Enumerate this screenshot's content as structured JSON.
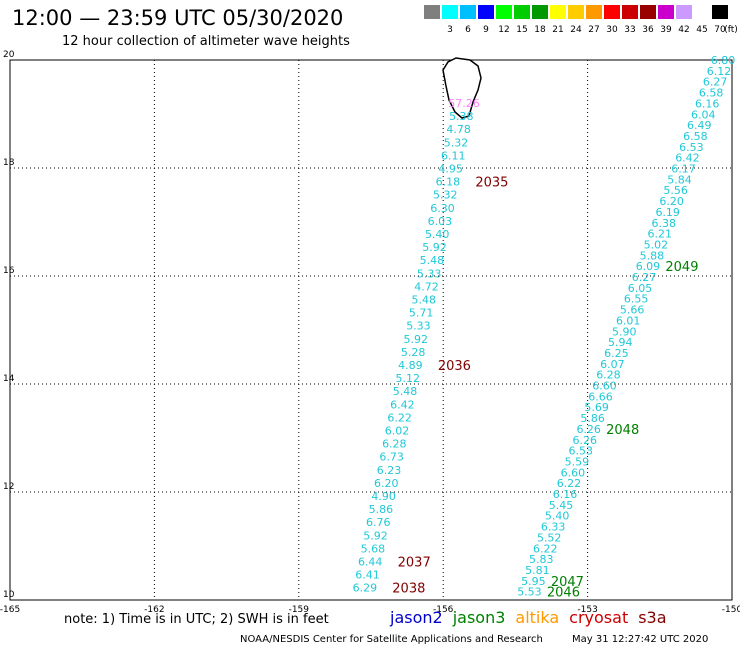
{
  "title": "12:00 — 23:59 UTC 05/30/2020",
  "subtitle": "12 hour collection of altimeter wave heights",
  "legend": {
    "unit": "(ft)",
    "bins": [
      {
        "label": "",
        "color": "#7f7f7f"
      },
      {
        "label": "3",
        "color": "#00ffff"
      },
      {
        "label": "6",
        "color": "#00bfff"
      },
      {
        "label": "9",
        "color": "#0000ff"
      },
      {
        "label": "12",
        "color": "#00ff00"
      },
      {
        "label": "15",
        "color": "#00cc00"
      },
      {
        "label": "18",
        "color": "#009900"
      },
      {
        "label": "21",
        "color": "#ffff00"
      },
      {
        "label": "24",
        "color": "#ffcc00"
      },
      {
        "label": "27",
        "color": "#ff9900"
      },
      {
        "label": "30",
        "color": "#ff0000"
      },
      {
        "label": "33",
        "color": "#cc0000"
      },
      {
        "label": "36",
        "color": "#990000"
      },
      {
        "label": "39",
        "color": "#cc00cc"
      },
      {
        "label": "42",
        "color": "#cc99ff"
      },
      {
        "label": "45",
        "color": "#ffffff"
      },
      {
        "label": "70",
        "color": "#000000"
      }
    ]
  },
  "axes": {
    "lon_ticks": [
      "-165",
      "-162",
      "-159",
      "-156",
      "-153",
      "-150"
    ],
    "lat_ticks": [
      "10",
      "12",
      "14",
      "16",
      "18",
      "20"
    ]
  },
  "colors": {
    "swh": "#20c8d8",
    "time_jason3": "#008000",
    "time_cryosat": "#800000",
    "highlight": "#ff80ff"
  },
  "tracks": [
    {
      "id": "track-1",
      "readings": [
        "57.26",
        "5.38",
        "4.78",
        "5.32",
        "6.11",
        "4.95",
        "6.18",
        "5.32",
        "6.30",
        "6.03",
        "5.40",
        "5.92",
        "5.48",
        "5.33",
        "4.72",
        "5.48",
        "5.71",
        "5.33",
        "5.92",
        "5.28",
        "4.89",
        "5.12",
        "5.48",
        "6.42",
        "6.22",
        "6.02",
        "6.28",
        "6.73",
        "6.23",
        "6.20",
        "4.90",
        "5.86",
        "6.76",
        "5.92",
        "5.68",
        "6.44",
        "6.41",
        "6.29"
      ],
      "times": [
        {
          "label": "2035",
          "row": 6
        },
        {
          "label": "2036",
          "row": 20
        },
        {
          "label": "2037",
          "row": 35
        },
        {
          "label": "2038",
          "row": 37
        }
      ]
    },
    {
      "id": "track-2",
      "readings": [
        "6.80",
        "6.12",
        "6.27",
        "6.58",
        "6.16",
        "6.04",
        "6.49",
        "6.58",
        "6.53",
        "6.42",
        "6.17",
        "5.84",
        "5.56",
        "6.20",
        "6.19",
        "6.38",
        "6.21",
        "5.02",
        "5.88",
        "6.09",
        "6.27",
        "6.05",
        "6.55",
        "5.66",
        "6.01",
        "5.90",
        "5.94",
        "6.25",
        "6.07",
        "6.28",
        "6.60",
        "6.66",
        "5.69",
        "5.86",
        "6.26",
        "6.26",
        "6.53",
        "5.59",
        "6.60",
        "6.22",
        "6.16",
        "5.45",
        "5.40",
        "6.33",
        "5.52",
        "6.22",
        "5.83",
        "5.81",
        "5.95",
        "5.53"
      ],
      "times": [
        {
          "label": "2049",
          "row": 19
        },
        {
          "label": "2048",
          "row": 34
        },
        {
          "label": "2047",
          "row": 48
        },
        {
          "label": "2046",
          "row": 49
        }
      ]
    }
  ],
  "note": "note: 1) Time is in UTC; 2) SWH is in feet",
  "satellites": [
    {
      "name": "jason2",
      "color": "#0000cc"
    },
    {
      "name": "jason3",
      "color": "#008000"
    },
    {
      "name": "altika",
      "color": "#ff9900"
    },
    {
      "name": "cryosat",
      "color": "#cc0000"
    },
    {
      "name": "s3a",
      "color": "#800000"
    }
  ],
  "credit": "NOAA/NESDIS Center for Satellite Applications and Research",
  "generated": "May 31 12:27:42 UTC 2020"
}
